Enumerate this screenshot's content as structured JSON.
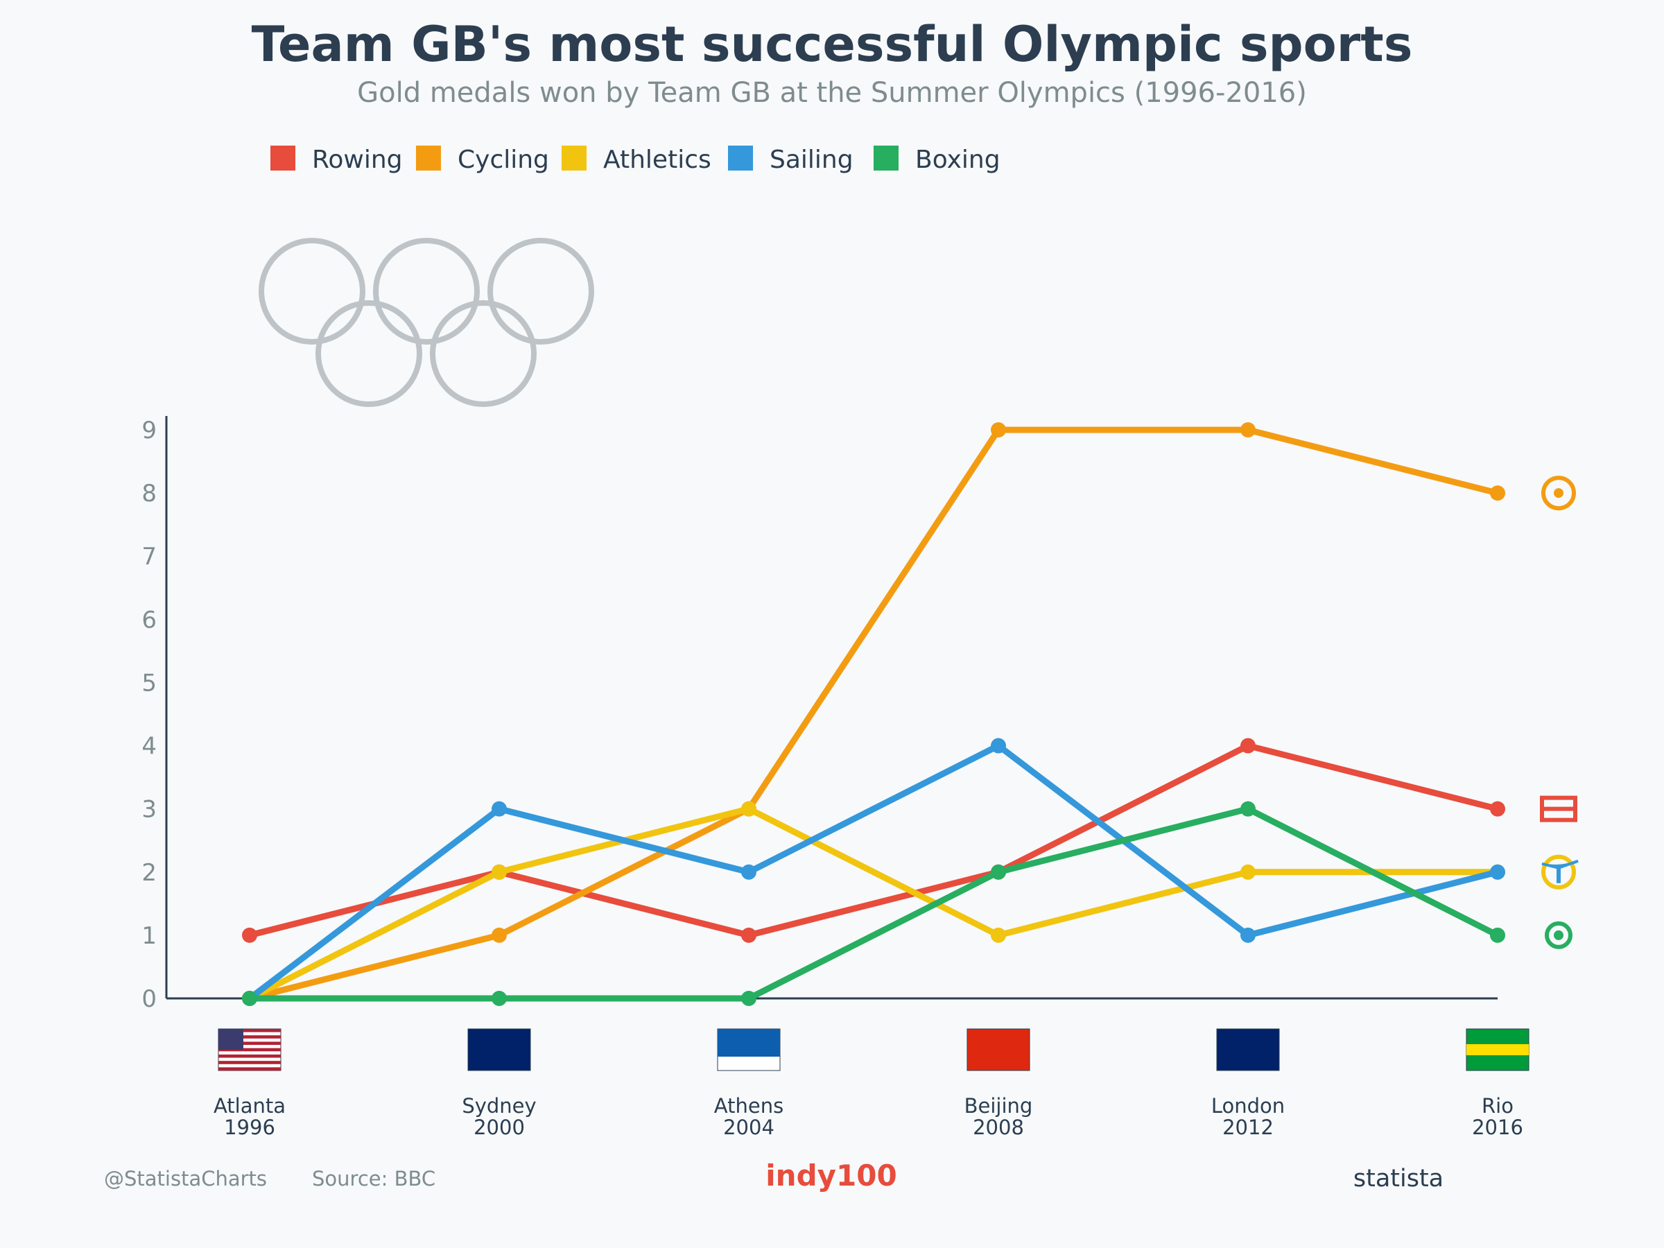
{
  "header": {
    "title": "Team GB's most successful Olympic sports",
    "subtitle": "Gold medals won by Team GB at the Summer Olympics (1996-2016)"
  },
  "footer": {
    "handle": "@StatistaCharts",
    "source": "Source: BBC",
    "brand_center": "indy100",
    "brand_right": "statista"
  },
  "colors": {
    "background": "#f7f9fb",
    "title": "#2c3e50",
    "subtitle": "#7f8c8d",
    "axis": "#2c3e50",
    "rings": "#bdc3c7",
    "indy_brand": "#e74c3c"
  },
  "chart_data": {
    "type": "line",
    "title": "Team GB's most successful Olympic sports",
    "subtitle": "Gold medals won by Team GB at the Summer Olympics (1996-2016)",
    "xlabel": "",
    "ylabel": "",
    "ylim": [
      0,
      9
    ],
    "yticks": [
      "0",
      "1",
      "2",
      "3",
      "4",
      "5",
      "6",
      "7",
      "8",
      "9"
    ],
    "grid": false,
    "legend_position": "top-left",
    "categories": [
      {
        "city": "Atlanta",
        "year": "1996",
        "flag": "usa-flag-icon"
      },
      {
        "city": "Sydney",
        "year": "2000",
        "flag": "australia-flag-icon"
      },
      {
        "city": "Athens",
        "year": "2004",
        "flag": "greece-flag-icon"
      },
      {
        "city": "Beijing",
        "year": "2008",
        "flag": "china-flag-icon"
      },
      {
        "city": "London",
        "year": "2012",
        "flag": "uk-flag-icon"
      },
      {
        "city": "Rio",
        "year": "2016",
        "flag": "brazil-flag-icon"
      }
    ],
    "series": [
      {
        "name": "Rowing",
        "color": "#e74c3c",
        "values": [
          1,
          2,
          1,
          2,
          4,
          3
        ],
        "icon": "rowing-icon"
      },
      {
        "name": "Cycling",
        "color": "#f39c12",
        "values": [
          0,
          1,
          3,
          9,
          9,
          8
        ],
        "icon": "cycling-icon"
      },
      {
        "name": "Athletics",
        "color": "#f1c40f",
        "values": [
          0,
          2,
          3,
          1,
          2,
          2
        ],
        "icon": "athletics-icon"
      },
      {
        "name": "Sailing",
        "color": "#3498db",
        "values": [
          0,
          3,
          2,
          4,
          1,
          2
        ],
        "icon": "sailing-icon"
      },
      {
        "name": "Boxing",
        "color": "#27ae60",
        "values": [
          0,
          0,
          0,
          2,
          3,
          1
        ],
        "icon": "boxing-icon"
      }
    ]
  }
}
